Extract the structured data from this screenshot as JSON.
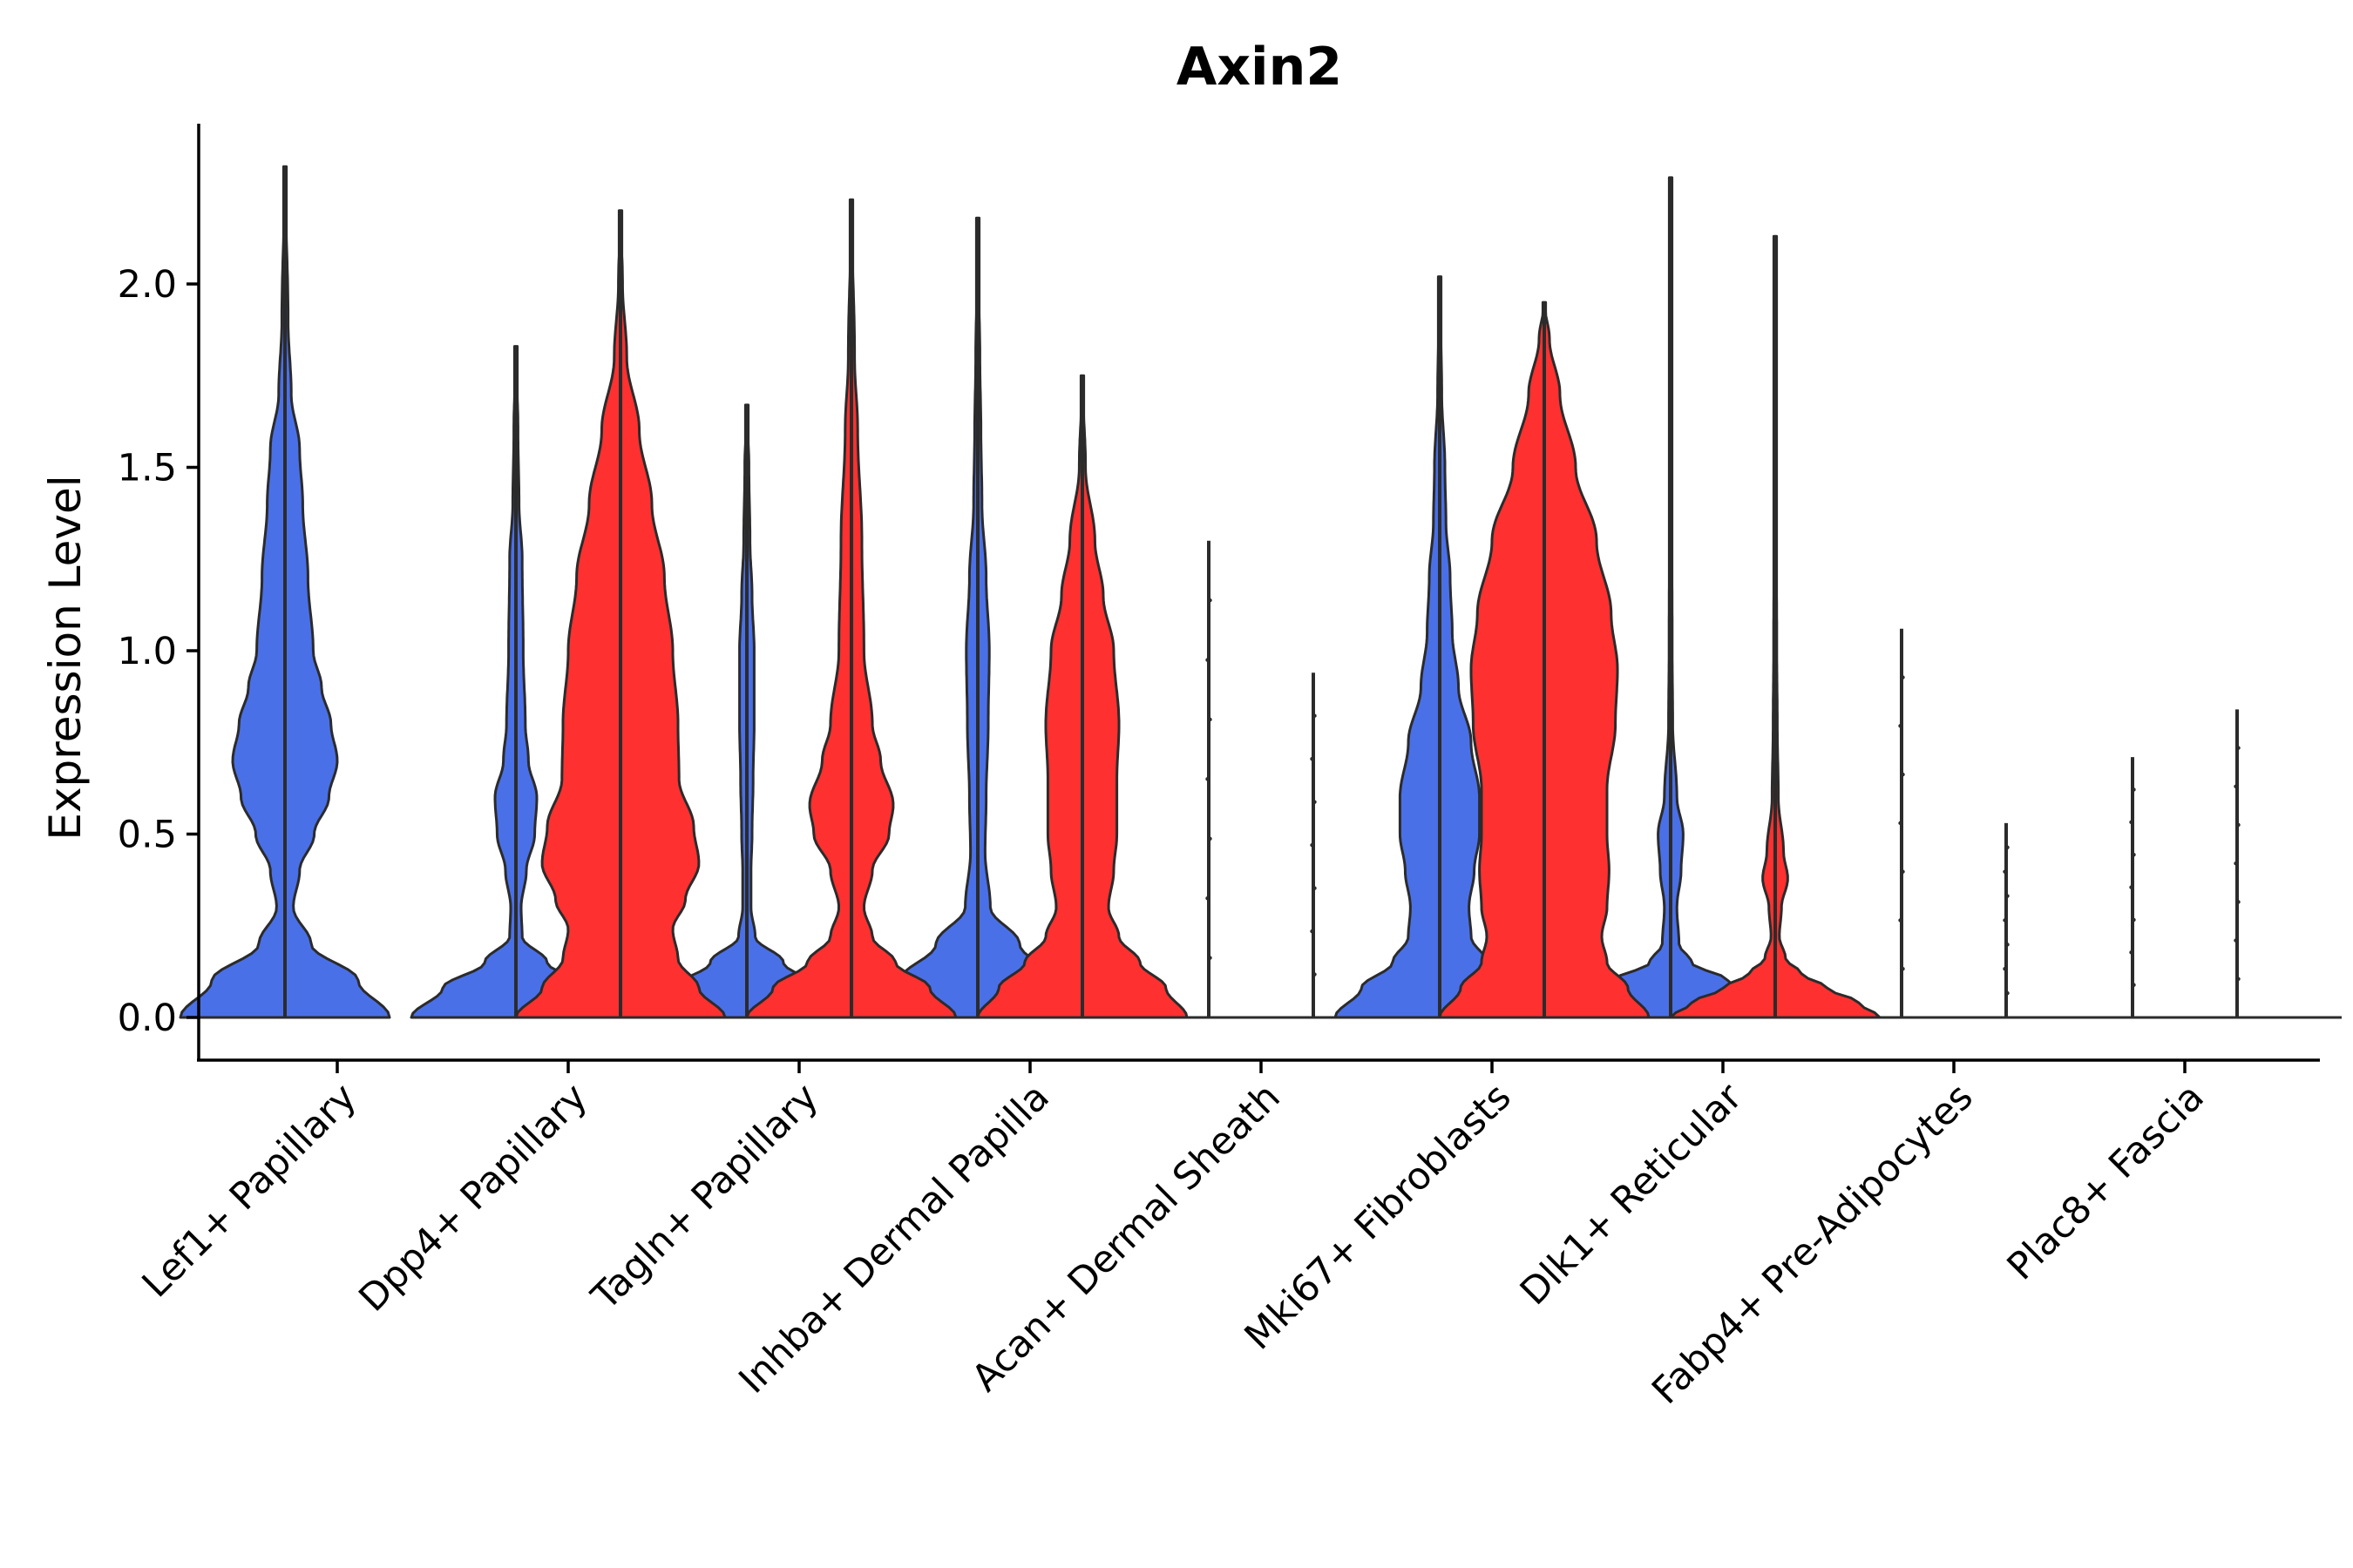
{
  "chart_data": {
    "type": "violin",
    "title": "Axin2",
    "xlabel": "",
    "ylabel": "Expression Level",
    "ylim": [
      -0.12,
      2.42
    ],
    "yticks": [
      0.0,
      0.5,
      1.0,
      1.5,
      2.0
    ],
    "ytick_labels": [
      "0.0",
      "0.5",
      "1.0",
      "1.5",
      "2.0"
    ],
    "legend": "none",
    "colors": {
      "blue": "#4a70e8",
      "red": "#ff3030",
      "outline": "#2b2b2b"
    },
    "categories": [
      "Lef1+ Papillary",
      "Dpp4+ Papillary",
      "Tagln+ Papillary",
      "Inhba+ Dermal Papilla",
      "Acan+ Dermal Sheath",
      "Mki67+ Fibroblasts",
      "Dlk1+ Reticular",
      "Fabp4+ Pre-Adipocytes",
      "Plac8+ Fascia"
    ],
    "series": [
      {
        "name": "blue",
        "color": "#4a70e8",
        "violins": [
          {
            "category": "Lef1+ Papillary",
            "max": 2.32,
            "profile": [
              [
                0,
                1.0
              ],
              [
                0.1,
                0.7
              ],
              [
                0.2,
                0.25
              ],
              [
                0.3,
                0.08
              ],
              [
                0.4,
                0.14
              ],
              [
                0.5,
                0.28
              ],
              [
                0.6,
                0.42
              ],
              [
                0.7,
                0.5
              ],
              [
                0.8,
                0.44
              ],
              [
                0.9,
                0.35
              ],
              [
                1.0,
                0.27
              ],
              [
                1.2,
                0.22
              ],
              [
                1.4,
                0.17
              ],
              [
                1.55,
                0.14
              ],
              [
                1.7,
                0.06
              ],
              [
                1.9,
                0.03
              ],
              [
                2.32,
                0
              ]
            ]
          },
          {
            "category": "Dpp4+ Papillary",
            "max": 1.83,
            "profile": [
              [
                0,
                1.0
              ],
              [
                0.08,
                0.7
              ],
              [
                0.15,
                0.3
              ],
              [
                0.22,
                0.06
              ],
              [
                0.3,
                0.05
              ],
              [
                0.4,
                0.1
              ],
              [
                0.5,
                0.18
              ],
              [
                0.6,
                0.2
              ],
              [
                0.7,
                0.12
              ],
              [
                0.8,
                0.09
              ],
              [
                1.0,
                0.07
              ],
              [
                1.25,
                0.06
              ],
              [
                1.4,
                0.03
              ],
              [
                1.6,
                0.02
              ],
              [
                1.83,
                0
              ]
            ]
          },
          {
            "category": "Tagln+ Papillary",
            "max": 1.67,
            "profile": [
              [
                0,
                1.0
              ],
              [
                0.08,
                0.7
              ],
              [
                0.15,
                0.35
              ],
              [
                0.22,
                0.08
              ],
              [
                0.3,
                0.04
              ],
              [
                0.4,
                0.04
              ],
              [
                0.5,
                0.05
              ],
              [
                0.65,
                0.06
              ],
              [
                0.8,
                0.07
              ],
              [
                1.0,
                0.07
              ],
              [
                1.15,
                0.05
              ],
              [
                1.3,
                0.03
              ],
              [
                1.5,
                0.02
              ],
              [
                1.67,
                0
              ]
            ]
          },
          {
            "category": "Inhba+ Dermal Papilla",
            "max": 2.18,
            "profile": [
              [
                0,
                1.0
              ],
              [
                0.1,
                0.75
              ],
              [
                0.2,
                0.4
              ],
              [
                0.3,
                0.12
              ],
              [
                0.45,
                0.07
              ],
              [
                0.6,
                0.08
              ],
              [
                0.8,
                0.1
              ],
              [
                1.0,
                0.11
              ],
              [
                1.2,
                0.08
              ],
              [
                1.4,
                0.04
              ],
              [
                1.6,
                0.03
              ],
              [
                1.8,
                0.02
              ],
              [
                2.0,
                0.01
              ],
              [
                2.18,
                0
              ]
            ]
          },
          {
            "category": "Acan+ Dermal Sheath",
            "max": 1.3,
            "profile": [
              [
                0,
                0.02
              ],
              [
                0.02,
                0.005
              ],
              [
                1.3,
                0
              ]
            ]
          },
          {
            "category": "Mki67+ Fibroblasts",
            "max": 2.02,
            "profile": [
              [
                0,
                1.0
              ],
              [
                0.08,
                0.75
              ],
              [
                0.15,
                0.45
              ],
              [
                0.22,
                0.3
              ],
              [
                0.3,
                0.28
              ],
              [
                0.4,
                0.33
              ],
              [
                0.5,
                0.38
              ],
              [
                0.6,
                0.38
              ],
              [
                0.75,
                0.3
              ],
              [
                0.9,
                0.18
              ],
              [
                1.05,
                0.12
              ],
              [
                1.2,
                0.1
              ],
              [
                1.35,
                0.06
              ],
              [
                1.5,
                0.05
              ],
              [
                1.7,
                0.02
              ],
              [
                2.02,
                0
              ]
            ]
          },
          {
            "category": "Dlk1+ Reticular",
            "max": 2.29,
            "profile": [
              [
                0,
                1.0
              ],
              [
                0.05,
                0.85
              ],
              [
                0.1,
                0.55
              ],
              [
                0.15,
                0.2
              ],
              [
                0.2,
                0.08
              ],
              [
                0.3,
                0.06
              ],
              [
                0.4,
                0.1
              ],
              [
                0.5,
                0.12
              ],
              [
                0.6,
                0.06
              ],
              [
                0.8,
                0.02
              ],
              [
                1.0,
                0.015
              ],
              [
                1.5,
                0.01
              ],
              [
                2.29,
                0
              ]
            ]
          },
          {
            "category": "Fabp4+ Pre-Adipocytes",
            "max": 1.06,
            "profile": [
              [
                0,
                0.02
              ],
              [
                0.02,
                0.005
              ],
              [
                1.06,
                0
              ]
            ]
          },
          {
            "category": "Plac8+ Fascia",
            "max": 0.71,
            "profile": [
              [
                0,
                0.02
              ],
              [
                0.02,
                0.005
              ],
              [
                0.71,
                0
              ]
            ]
          }
        ]
      },
      {
        "name": "red",
        "color": "#ff3030",
        "violins": [
          {
            "category": "Dpp4+ Papillary",
            "max": 2.2,
            "profile": [
              [
                0,
                1.0
              ],
              [
                0.08,
                0.75
              ],
              [
                0.16,
                0.55
              ],
              [
                0.24,
                0.5
              ],
              [
                0.32,
                0.62
              ],
              [
                0.42,
                0.75
              ],
              [
                0.52,
                0.7
              ],
              [
                0.65,
                0.56
              ],
              [
                0.8,
                0.55
              ],
              [
                1.0,
                0.5
              ],
              [
                1.2,
                0.42
              ],
              [
                1.4,
                0.3
              ],
              [
                1.6,
                0.18
              ],
              [
                1.8,
                0.06
              ],
              [
                2.0,
                0.02
              ],
              [
                2.2,
                0
              ]
            ]
          },
          {
            "category": "Tagln+ Papillary",
            "max": 2.23,
            "profile": [
              [
                0,
                1.0
              ],
              [
                0.08,
                0.75
              ],
              [
                0.15,
                0.42
              ],
              [
                0.22,
                0.2
              ],
              [
                0.3,
                0.12
              ],
              [
                0.4,
                0.2
              ],
              [
                0.5,
                0.36
              ],
              [
                0.58,
                0.4
              ],
              [
                0.7,
                0.28
              ],
              [
                0.8,
                0.2
              ],
              [
                1.0,
                0.12
              ],
              [
                1.3,
                0.1
              ],
              [
                1.6,
                0.06
              ],
              [
                1.8,
                0.03
              ],
              [
                2.23,
                0
              ]
            ]
          },
          {
            "category": "Inhba+ Dermal Papilla",
            "max": 1.75,
            "profile": [
              [
                0,
                1.0
              ],
              [
                0.08,
                0.8
              ],
              [
                0.15,
                0.55
              ],
              [
                0.22,
                0.35
              ],
              [
                0.3,
                0.25
              ],
              [
                0.4,
                0.3
              ],
              [
                0.5,
                0.33
              ],
              [
                0.65,
                0.33
              ],
              [
                0.8,
                0.35
              ],
              [
                1.0,
                0.3
              ],
              [
                1.15,
                0.2
              ],
              [
                1.3,
                0.12
              ],
              [
                1.5,
                0.03
              ],
              [
                1.75,
                0
              ]
            ]
          },
          {
            "category": "Acan+ Dermal Sheath",
            "max": 0.94,
            "profile": [
              [
                0,
                0.02
              ],
              [
                0.02,
                0.005
              ],
              [
                0.94,
                0
              ]
            ]
          },
          {
            "category": "Mki67+ Fibroblasts",
            "max": 1.95,
            "profile": [
              [
                0,
                1.0
              ],
              [
                0.08,
                0.8
              ],
              [
                0.15,
                0.6
              ],
              [
                0.22,
                0.55
              ],
              [
                0.3,
                0.6
              ],
              [
                0.4,
                0.62
              ],
              [
                0.5,
                0.6
              ],
              [
                0.62,
                0.6
              ],
              [
                0.8,
                0.68
              ],
              [
                0.95,
                0.7
              ],
              [
                1.1,
                0.64
              ],
              [
                1.3,
                0.5
              ],
              [
                1.5,
                0.3
              ],
              [
                1.7,
                0.15
              ],
              [
                1.85,
                0.05
              ],
              [
                1.95,
                0
              ]
            ]
          },
          {
            "category": "Dlk1+ Reticular",
            "max": 2.13,
            "profile": [
              [
                0,
                1.0
              ],
              [
                0.04,
                0.8
              ],
              [
                0.08,
                0.5
              ],
              [
                0.12,
                0.25
              ],
              [
                0.16,
                0.1
              ],
              [
                0.22,
                0.04
              ],
              [
                0.3,
                0.06
              ],
              [
                0.38,
                0.12
              ],
              [
                0.45,
                0.08
              ],
              [
                0.6,
                0.03
              ],
              [
                0.8,
                0.02
              ],
              [
                1.0,
                0.015
              ],
              [
                1.5,
                0.008
              ],
              [
                2.13,
                0
              ]
            ]
          },
          {
            "category": "Fabp4+ Pre-Adipocytes",
            "max": 0.53,
            "profile": [
              [
                0,
                0.02
              ],
              [
                0.02,
                0.005
              ],
              [
                0.53,
                0
              ]
            ]
          },
          {
            "category": "Plac8+ Fascia",
            "max": 0.84,
            "profile": [
              [
                0,
                0.02
              ],
              [
                0.02,
                0.005
              ],
              [
                0.84,
                0
              ]
            ]
          }
        ]
      }
    ]
  }
}
